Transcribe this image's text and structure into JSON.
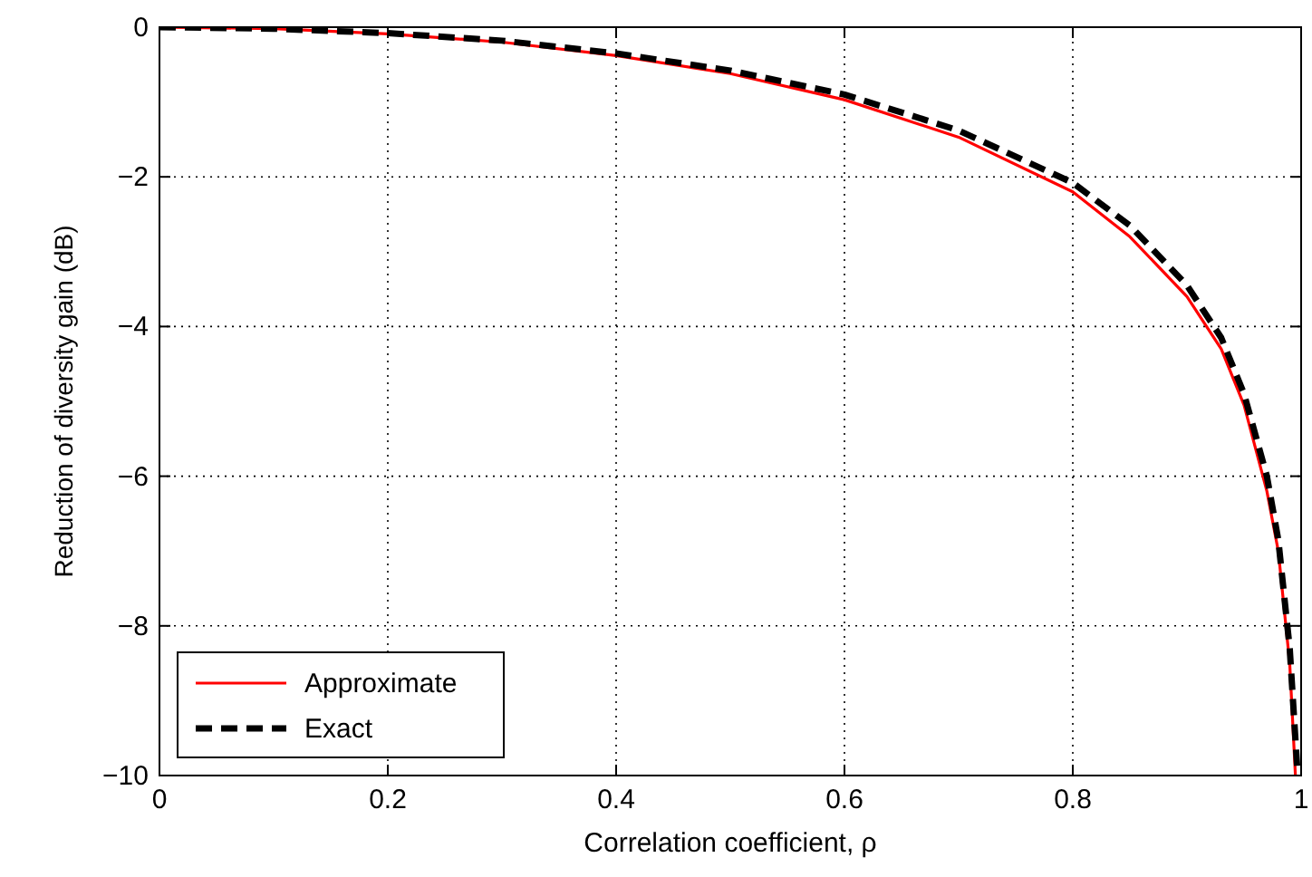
{
  "chart_data": {
    "type": "line",
    "xlabel": "Correlation coefficient, ρ",
    "ylabel": "Reduction of diversity gain (dB)",
    "xlim": [
      0,
      1
    ],
    "ylim": [
      -10,
      0
    ],
    "xticks": [
      0,
      0.2,
      0.4,
      0.6,
      0.8,
      1
    ],
    "yticks": [
      {
        "value": -10,
        "label": "−10"
      },
      {
        "value": -8,
        "label": "−8"
      },
      {
        "value": -6,
        "label": "−6"
      },
      {
        "value": -4,
        "label": "−4"
      },
      {
        "value": -2,
        "label": "−2"
      },
      0
    ],
    "grid": true,
    "legend": "bottom left",
    "marker": "none",
    "series": [
      {
        "name": "Approximate",
        "color": "#ff0000",
        "line_style": "solid",
        "x": [
          0,
          0.1,
          0.2,
          0.3,
          0.4,
          0.5,
          0.6,
          0.7,
          0.8,
          0.85,
          0.9,
          0.93,
          0.95,
          0.97,
          0.98,
          0.99,
          0.995
        ],
        "values": [
          0,
          -0.02,
          -0.09,
          -0.2,
          -0.38,
          -0.62,
          -0.97,
          -1.47,
          -2.2,
          -2.8,
          -3.6,
          -4.3,
          -5.05,
          -6.2,
          -7.0,
          -8.5,
          -10
        ]
      },
      {
        "name": "Exact",
        "color": "#000000",
        "line_style": "dashed",
        "x": [
          0,
          0.1,
          0.2,
          0.3,
          0.4,
          0.5,
          0.6,
          0.7,
          0.8,
          0.85,
          0.9,
          0.93,
          0.95,
          0.97,
          0.98,
          0.99,
          0.997
        ],
        "values": [
          0,
          -0.02,
          -0.08,
          -0.18,
          -0.35,
          -0.58,
          -0.9,
          -1.38,
          -2.08,
          -2.65,
          -3.45,
          -4.15,
          -4.9,
          -6.0,
          -6.85,
          -8.3,
          -10
        ]
      }
    ]
  }
}
